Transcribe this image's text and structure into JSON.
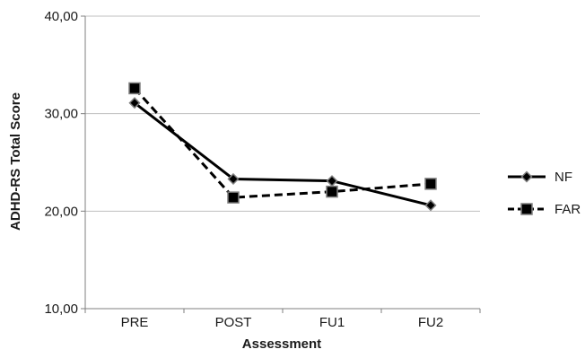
{
  "chart_data": {
    "type": "line",
    "categories": [
      "PRE",
      "POST",
      "FU1",
      "FU2"
    ],
    "series": [
      {
        "name": "NF",
        "values": [
          31.1,
          23.3,
          23.1,
          20.6
        ],
        "line_style": "solid",
        "marker": "diamond"
      },
      {
        "name": "FAR",
        "values": [
          32.6,
          21.4,
          22.0,
          22.8
        ],
        "line_style": "dashed",
        "marker": "square"
      }
    ],
    "title": "",
    "xlabel": "Assessment",
    "ylabel": "ADHD-RS Total Score",
    "ylim": [
      10,
      40
    ],
    "yticks": [
      "10,00",
      "20,00",
      "30,00",
      "40,00"
    ],
    "ytick_values": [
      10,
      20,
      30,
      40
    ],
    "grid": true,
    "legend": "right",
    "colors": {
      "series": "#000000",
      "marker_fill": "#000000",
      "marker_stroke": "#7f7f7f",
      "grid": "#bfbfbf"
    }
  }
}
